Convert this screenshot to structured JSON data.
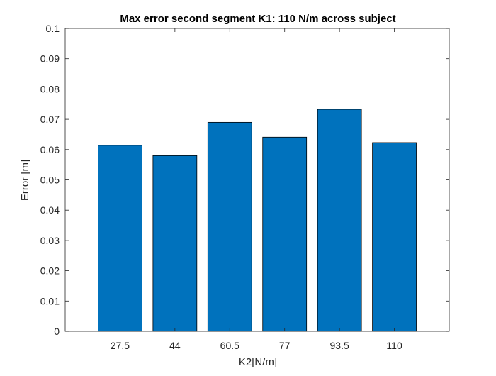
{
  "chart_data": {
    "type": "bar",
    "title": "Max error second segment K1: 110 N/m across subject",
    "xlabel": "K2[N/m]",
    "ylabel": "Error [m]",
    "categories": [
      "27.5",
      "44",
      "60.5",
      "77",
      "93.5",
      "110"
    ],
    "values": [
      0.0614,
      0.058,
      0.069,
      0.0641,
      0.0733,
      0.0623
    ],
    "ylim": [
      0,
      0.1
    ],
    "xlim": [
      0,
      7
    ],
    "yticks": [
      "0",
      "0.01",
      "0.02",
      "0.03",
      "0.04",
      "0.05",
      "0.06",
      "0.07",
      "0.08",
      "0.09",
      "0.1"
    ],
    "grid": false,
    "legend": "none",
    "colors": {
      "bar_fill": "#0072BD",
      "bar_edge": "#000000",
      "axis": "#262626"
    }
  }
}
